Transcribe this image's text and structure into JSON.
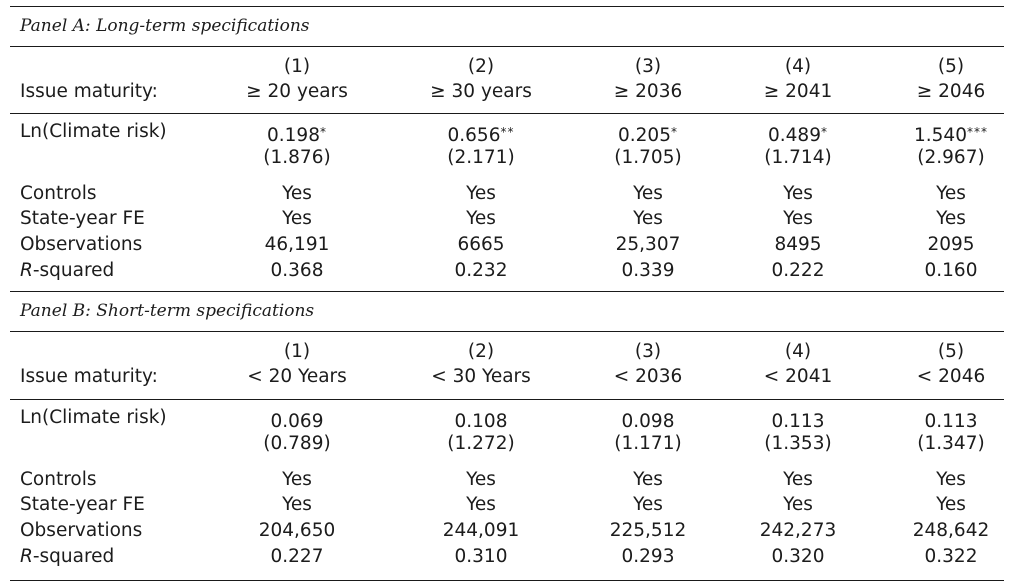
{
  "panelA": {
    "title": "Panel A: Long-term specifications",
    "col_nums": [
      "(1)",
      "(2)",
      "(3)",
      "(4)",
      "(5)"
    ],
    "maturity_label": "Issue maturity:",
    "maturities": [
      "≥ 20 years",
      "≥ 30 years",
      "≥ 2036",
      "≥ 2041",
      "≥ 2046"
    ],
    "climate_label": "Ln(Climate risk)",
    "coefs": [
      "0.198",
      "0.656",
      "0.205",
      "0.489",
      "1.540"
    ],
    "stars": [
      "*",
      "**",
      "*",
      "*",
      "***"
    ],
    "tstats": [
      "(1.876)",
      "(2.171)",
      "(1.705)",
      "(1.714)",
      "(2.967)"
    ],
    "controls_label": "Controls",
    "controls": [
      "Yes",
      "Yes",
      "Yes",
      "Yes",
      "Yes"
    ],
    "fe_label": "State-year FE",
    "fe": [
      "Yes",
      "Yes",
      "Yes",
      "Yes",
      "Yes"
    ],
    "obs_label": "Observations",
    "obs": [
      "46,191",
      "6665",
      "25,307",
      "8495",
      "2095"
    ],
    "rsq_label_italic": "R",
    "rsq_label_rest": "-squared",
    "rsq": [
      "0.368",
      "0.232",
      "0.339",
      "0.222",
      "0.160"
    ]
  },
  "panelB": {
    "title": "Panel B: Short-term specifications",
    "col_nums": [
      "(1)",
      "(2)",
      "(3)",
      "(4)",
      "(5)"
    ],
    "maturity_label": "Issue maturity:",
    "maturities": [
      "< 20 Years",
      "< 30 Years",
      "< 2036",
      "< 2041",
      "< 2046"
    ],
    "climate_label": "Ln(Climate risk)",
    "coefs": [
      "0.069",
      "0.108",
      "0.098",
      "0.113",
      "0.113"
    ],
    "stars": [
      "",
      "",
      "",
      "",
      ""
    ],
    "tstats": [
      "(0.789)",
      "(1.272)",
      "(1.171)",
      "(1.353)",
      "(1.347)"
    ],
    "controls_label": "Controls",
    "controls": [
      "Yes",
      "Yes",
      "Yes",
      "Yes",
      "Yes"
    ],
    "fe_label": "State-year FE",
    "fe": [
      "Yes",
      "Yes",
      "Yes",
      "Yes",
      "Yes"
    ],
    "obs_label": "Observations",
    "obs": [
      "204,650",
      "244,091",
      "225,512",
      "242,273",
      "248,642"
    ],
    "rsq_label_italic": "R",
    "rsq_label_rest": "-squared",
    "rsq": [
      "0.227",
      "0.310",
      "0.293",
      "0.320",
      "0.322"
    ]
  }
}
